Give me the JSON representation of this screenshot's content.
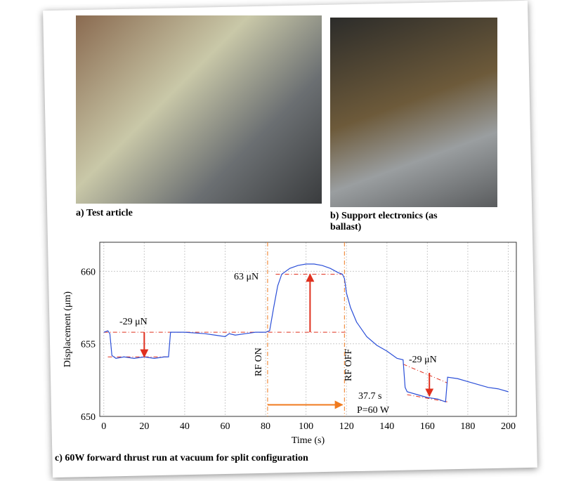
{
  "figure": {
    "panels": [
      {
        "caption": "a) Test article"
      },
      {
        "caption": "b) Support electronics (as ballast)"
      }
    ],
    "caption": "c) 60W forward thrust run at vacuum for split configuration"
  },
  "chart_data": {
    "type": "line",
    "x_label": "Time (s)",
    "y_label": "Displacement (μm)",
    "color": "#2b4fd8",
    "x": [
      0,
      2,
      3,
      4,
      6,
      10,
      15,
      20,
      25,
      30,
      32,
      33,
      40,
      50,
      55,
      60,
      62,
      65,
      70,
      75,
      80,
      82,
      84,
      86,
      88,
      92,
      96,
      100,
      104,
      108,
      112,
      116,
      118,
      119,
      120,
      122,
      125,
      130,
      135,
      140,
      145,
      148,
      149,
      150,
      155,
      160,
      165,
      169,
      170,
      175,
      180,
      185,
      190,
      195,
      200
    ],
    "values": [
      655.8,
      655.9,
      655.7,
      654.2,
      654.0,
      654.1,
      654.0,
      654.1,
      654.0,
      654.1,
      654.1,
      655.8,
      655.8,
      655.7,
      655.6,
      655.5,
      655.7,
      655.6,
      655.7,
      655.8,
      655.8,
      655.9,
      657.5,
      659.0,
      659.8,
      660.2,
      660.4,
      660.5,
      660.5,
      660.4,
      660.2,
      659.9,
      659.8,
      659.5,
      658.5,
      657.5,
      656.5,
      655.5,
      654.9,
      654.5,
      654.0,
      653.9,
      652.0,
      651.7,
      651.5,
      651.3,
      651.2,
      651.0,
      652.7,
      652.6,
      652.4,
      652.2,
      652.0,
      651.9,
      651.7
    ],
    "xlim": [
      -2,
      204
    ],
    "ylim": [
      650,
      662
    ],
    "xticks": [
      0,
      20,
      40,
      60,
      80,
      100,
      120,
      140,
      160,
      180,
      200
    ],
    "yticks": [
      650,
      655,
      660
    ],
    "grid": true,
    "fit_color": "#e0301e",
    "fit_lines": [
      {
        "x": [
          0,
          120
        ],
        "values": [
          655.8,
          655.8
        ]
      },
      {
        "x": [
          2,
          32
        ],
        "values": [
          654.1,
          654.1
        ]
      },
      {
        "x": [
          85,
          118
        ],
        "values": [
          659.8,
          659.8
        ]
      },
      {
        "x": [
          148,
          170
        ],
        "values": [
          653.6,
          652.3
        ]
      },
      {
        "x": [
          150,
          170
        ],
        "values": [
          651.5,
          651.0
        ]
      }
    ],
    "arrows": [
      {
        "x": 20,
        "from": 655.8,
        "to": 654.1
      },
      {
        "x": 102,
        "from": 655.8,
        "to": 659.8
      },
      {
        "x": 161,
        "from": 653.0,
        "to": 651.4
      }
    ],
    "marker_color": "#f07a1e",
    "markers": [
      81,
      119
    ],
    "span": {
      "from": 81,
      "to": 118,
      "at": 650.8
    },
    "annotations": [
      "-29 μN",
      "63 μN",
      "-29 μN",
      "RF ON",
      "RF OFF",
      "37.7 s",
      "P=60 W"
    ]
  }
}
